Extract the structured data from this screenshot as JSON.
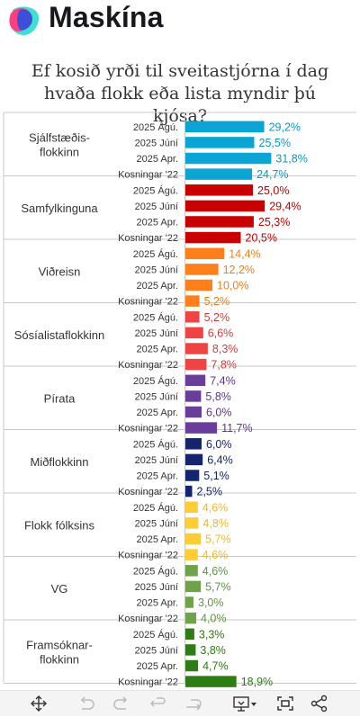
{
  "brand": {
    "name": "Maskína"
  },
  "title": "Ef kosið yrði til sveitastjórna í dag hvaða flokk eða lista myndir þú kjósa?",
  "chart_data": {
    "type": "bar",
    "orientation": "horizontal",
    "title": "Ef kosið yrði til sveitastjórna í dag hvaða flokk eða lista myndir þú kjósa?",
    "value_suffix": "%",
    "xlim": [
      0,
      35
    ],
    "grid": false,
    "groups": [
      {
        "label": "Sjálfstæðis-\nflokkinn",
        "color": "#0aa5d4",
        "labelColor": "#0a96c8",
        "bars": [
          {
            "label": "2025 Ágú.",
            "value": 29.2,
            "text": "29,2%"
          },
          {
            "label": "2025 Júní",
            "value": 25.5,
            "text": "25,5%"
          },
          {
            "label": "2025 Apr.",
            "value": 31.8,
            "text": "31,8%"
          },
          {
            "label": "Kosningar '22",
            "value": 24.7,
            "text": "24,7%"
          }
        ]
      },
      {
        "label": "Samfylkinguna",
        "color": "#c80000",
        "labelColor": "#c00000",
        "bars": [
          {
            "label": "2025 Ágú.",
            "value": 25.0,
            "text": "25,0%"
          },
          {
            "label": "2025 Júní",
            "value": 29.4,
            "text": "29,4%"
          },
          {
            "label": "2025 Apr.",
            "value": 25.3,
            "text": "25,3%"
          },
          {
            "label": "Kosningar '22",
            "value": 20.5,
            "text": "20,5%"
          }
        ]
      },
      {
        "label": "Viðreisn",
        "color": "#ff7f1a",
        "labelColor": "#f07d1a",
        "bars": [
          {
            "label": "2025 Ágú.",
            "value": 14.4,
            "text": "14,4%"
          },
          {
            "label": "2025 Júní",
            "value": 12.2,
            "text": "12,2%"
          },
          {
            "label": "2025 Apr.",
            "value": 10.0,
            "text": "10,0%"
          },
          {
            "label": "Kosningar '22",
            "value": 5.2,
            "text": "5,2%"
          }
        ]
      },
      {
        "label": "Sósíalistaflokkinn",
        "color": "#ef4444",
        "labelColor": "#d33a3a",
        "bars": [
          {
            "label": "2025 Ágú.",
            "value": 5.2,
            "text": "5,2%"
          },
          {
            "label": "2025 Júní",
            "value": 6.6,
            "text": "6,6%"
          },
          {
            "label": "2025 Apr.",
            "value": 8.3,
            "text": "8,3%"
          },
          {
            "label": "Kosningar '22",
            "value": 7.8,
            "text": "7,8%"
          }
        ]
      },
      {
        "label": "Pírata",
        "color": "#6a3d9a",
        "labelColor": "#5e358a",
        "bars": [
          {
            "label": "2025 Ágú.",
            "value": 7.4,
            "text": "7,4%"
          },
          {
            "label": "2025 Júní",
            "value": 5.8,
            "text": "5,8%"
          },
          {
            "label": "2025 Apr.",
            "value": 6.0,
            "text": "6,0%"
          },
          {
            "label": "Kosningar '22",
            "value": 11.7,
            "text": "11,7%"
          }
        ]
      },
      {
        "label": "Miðflokkinn",
        "color": "#14246e",
        "labelColor": "#14246e",
        "bars": [
          {
            "label": "2025 Ágú.",
            "value": 6.0,
            "text": "6,0%"
          },
          {
            "label": "2025 Júní",
            "value": 6.4,
            "text": "6,4%"
          },
          {
            "label": "2025 Apr.",
            "value": 5.1,
            "text": "5,1%"
          },
          {
            "label": "Kosningar '22",
            "value": 2.5,
            "text": "2,5%"
          }
        ]
      },
      {
        "label": "Flokk fólksins",
        "color": "#ffcc33",
        "labelColor": "#f2b81f",
        "bars": [
          {
            "label": "2025 Ágú.",
            "value": 4.6,
            "text": "4,6%"
          },
          {
            "label": "2025 Júní",
            "value": 4.8,
            "text": "4,8%"
          },
          {
            "label": "2025 Apr.",
            "value": 5.7,
            "text": "5,7%"
          },
          {
            "label": "Kosningar '22",
            "value": 4.6,
            "text": "4,6%"
          }
        ]
      },
      {
        "label": "VG",
        "color": "#6ea34a",
        "labelColor": "#5f9440",
        "bars": [
          {
            "label": "2025 Ágú.",
            "value": 4.6,
            "text": "4,6%"
          },
          {
            "label": "2025 Júní",
            "value": 5.7,
            "text": "5,7%"
          },
          {
            "label": "2025 Apr.",
            "value": 3.0,
            "text": "3,0%"
          },
          {
            "label": "Kosningar '22",
            "value": 4.0,
            "text": "4,0%"
          }
        ]
      },
      {
        "label": "Framsóknar-\nflokkinn",
        "color": "#2e7d14",
        "labelColor": "#2e7a12",
        "bars": [
          {
            "label": "2025 Ágú.",
            "value": 3.3,
            "text": "3,3%"
          },
          {
            "label": "2025 Júní",
            "value": 3.8,
            "text": "3,8%"
          },
          {
            "label": "2025 Apr.",
            "value": 4.7,
            "text": "4,7%"
          },
          {
            "label": "Kosningar '22",
            "value": 18.9,
            "text": "18,9%"
          }
        ]
      }
    ]
  },
  "toolbar": {
    "icons": [
      "move-icon",
      "undo-icon",
      "redo-icon",
      "reset-icon",
      "share-icon",
      "download-icon",
      "fullscreen-icon",
      "network-icon"
    ]
  }
}
